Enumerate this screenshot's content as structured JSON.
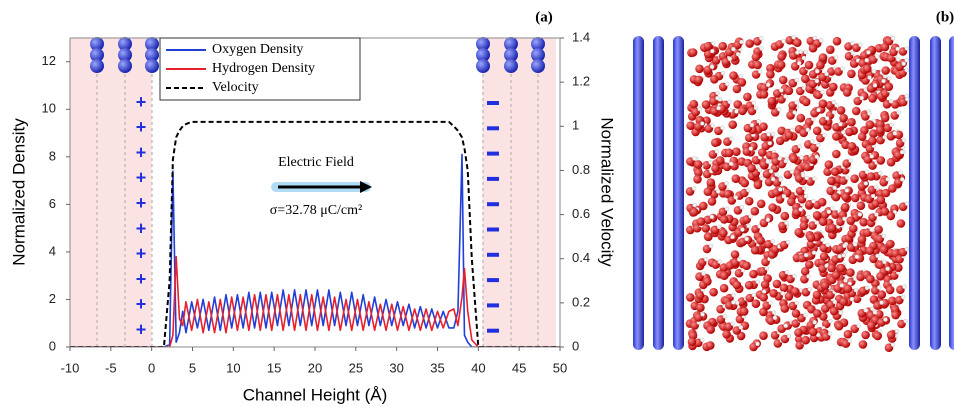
{
  "chart_data": {
    "type": "line",
    "panel_labels": [
      "(a)",
      "(b)"
    ],
    "xlabel": "Channel Height (Å)",
    "ylabel": "Normalized Density",
    "y2label": "Normalized Velocity",
    "annotations": [
      "Electric Field",
      "σ=32.78 μC/cm²"
    ],
    "xlim": [
      -10,
      50
    ],
    "xticks": [
      -10,
      -5,
      0,
      5,
      10,
      15,
      20,
      25,
      30,
      35,
      40,
      45,
      50
    ],
    "ylim": [
      0,
      13
    ],
    "yticks": [
      0,
      2,
      4,
      6,
      8,
      10,
      12
    ],
    "y2lim": [
      0,
      1.4
    ],
    "y2ticks": [
      0,
      0.2,
      0.4,
      0.6,
      0.8,
      1,
      1.2,
      1.4
    ],
    "shaded_x_ranges": [
      [
        -10,
        0
      ],
      [
        40.5,
        49.5
      ]
    ],
    "shade_color": "#fbe3e3",
    "x": [
      -10,
      1.5,
      2.2,
      2.6,
      3.0,
      3.4,
      3.8,
      4.2,
      4.9,
      5.6,
      6.3,
      7.0,
      7.7,
      8.4,
      9.1,
      9.8,
      10.5,
      11.2,
      11.9,
      12.6,
      13.3,
      14.0,
      14.7,
      15.4,
      16.1,
      16.8,
      17.5,
      18.2,
      18.9,
      19.6,
      20.3,
      21.0,
      21.7,
      22.4,
      23.1,
      23.8,
      24.5,
      25.2,
      25.9,
      26.6,
      27.3,
      28.0,
      28.7,
      29.4,
      30.1,
      30.8,
      31.5,
      32.2,
      32.9,
      33.6,
      34.3,
      35.0,
      35.7,
      36.4,
      37.0,
      37.5,
      38.0,
      38.3,
      38.7,
      39.2,
      40.0,
      50
    ],
    "series": [
      {
        "name": "Oxygen Density",
        "color": "#1f3fd8",
        "line_style": "solid",
        "values": [
          0,
          0,
          0.1,
          7.4,
          0.2,
          0.6,
          1.5,
          0.6,
          1.9,
          0.8,
          2.0,
          0.7,
          2.1,
          0.7,
          2.2,
          0.8,
          2.2,
          0.8,
          2.3,
          0.8,
          2.3,
          0.8,
          2.3,
          0.9,
          2.4,
          0.9,
          2.4,
          0.9,
          2.4,
          0.9,
          2.4,
          0.9,
          2.4,
          0.9,
          2.3,
          0.9,
          2.3,
          0.9,
          2.2,
          0.9,
          2.1,
          0.9,
          2.0,
          0.9,
          1.9,
          0.9,
          1.8,
          0.8,
          1.7,
          0.8,
          1.6,
          0.8,
          1.5,
          0.8,
          0.8,
          1.5,
          8.1,
          0.5,
          0.2,
          0,
          0,
          0
        ]
      },
      {
        "name": "Hydrogen Density",
        "color": "#e8202a",
        "line_style": "solid",
        "values": [
          0,
          0,
          0,
          0.5,
          3.8,
          1.2,
          0.9,
          1.9,
          0.7,
          2.0,
          0.6,
          1.9,
          0.6,
          2.0,
          0.6,
          2.1,
          0.7,
          2.1,
          0.7,
          2.2,
          0.7,
          2.2,
          0.7,
          2.2,
          0.7,
          2.2,
          0.7,
          2.2,
          0.7,
          2.2,
          0.7,
          2.1,
          0.7,
          2.1,
          0.7,
          2.0,
          0.7,
          2.0,
          0.7,
          1.9,
          0.7,
          1.8,
          0.7,
          1.8,
          0.7,
          1.7,
          0.7,
          1.6,
          0.7,
          1.6,
          0.7,
          1.5,
          0.8,
          1.5,
          1.6,
          0.9,
          2.1,
          3.3,
          1.5,
          0.3,
          0,
          0
        ]
      },
      {
        "name": "Velocity",
        "color": "#000000",
        "line_style": "dashed",
        "axis": "y2",
        "values": [
          0,
          0,
          0.3,
          0.85,
          0.95,
          0.98,
          1.0,
          1.01,
          1.02,
          1.02,
          1.02,
          1.02,
          1.02,
          1.02,
          1.02,
          1.02,
          1.02,
          1.02,
          1.02,
          1.02,
          1.02,
          1.02,
          1.02,
          1.02,
          1.02,
          1.02,
          1.02,
          1.02,
          1.02,
          1.02,
          1.02,
          1.02,
          1.02,
          1.02,
          1.02,
          1.02,
          1.02,
          1.02,
          1.02,
          1.02,
          1.02,
          1.02,
          1.02,
          1.02,
          1.02,
          1.02,
          1.02,
          1.02,
          1.02,
          1.02,
          1.02,
          1.02,
          1.02,
          1.02,
          1.0,
          0.98,
          0.95,
          0.9,
          0.8,
          0.4,
          0,
          0
        ]
      }
    ],
    "legend": "upper-left",
    "grid": false
  }
}
